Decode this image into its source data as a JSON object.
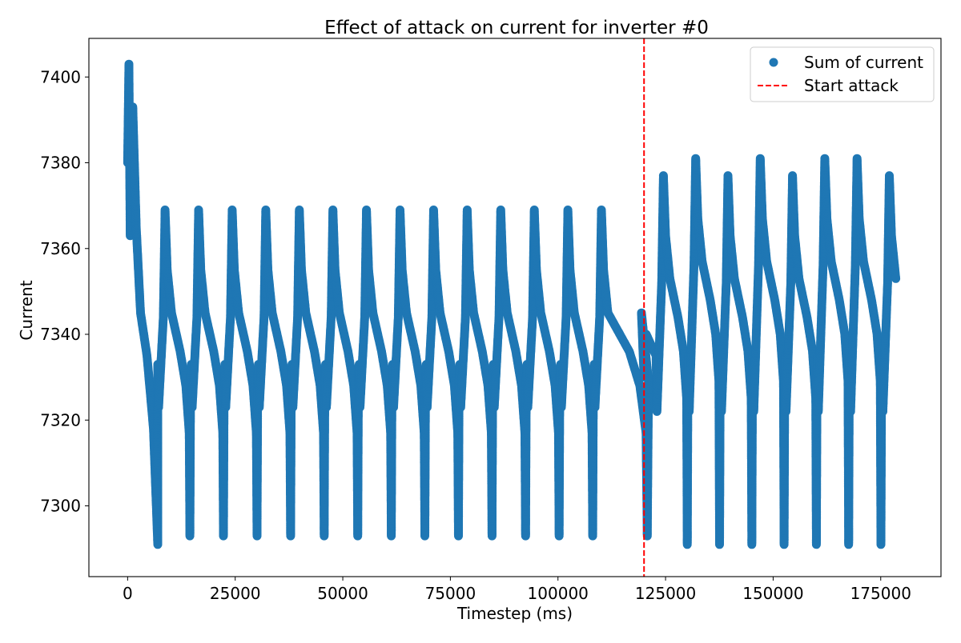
{
  "chart_data": {
    "type": "scatter",
    "title": "Effect of attack on current for inverter #0",
    "xlabel": "Timestep (ms)",
    "ylabel": "Current",
    "xlim": [
      -9000,
      189000
    ],
    "ylim": [
      7283.5,
      7409.0
    ],
    "xticks": [
      0,
      25000,
      50000,
      75000,
      100000,
      125000,
      150000,
      175000
    ],
    "xtick_labels": [
      "0",
      "25000",
      "50000",
      "75000",
      "100000",
      "125000",
      "150000",
      "175000"
    ],
    "yticks": [
      7300,
      7320,
      7340,
      7360,
      7380,
      7400
    ],
    "ytick_labels": [
      "7300",
      "7320",
      "7340",
      "7360",
      "7380",
      "7400"
    ],
    "grid": false,
    "legend_position": "top-right",
    "legend": [
      {
        "label": "Sum of current",
        "kind": "marker",
        "color": "#1f77b4"
      },
      {
        "label": "Start attack",
        "kind": "dashed-line",
        "color": "#ff0000"
      }
    ],
    "attack_start_x": 120000,
    "series": [
      {
        "name": "Sum of current",
        "color": "#1f77b4",
        "x_start": 0,
        "x_end": 180000,
        "startup": {
          "x": [
            0,
            300,
            600,
            1200,
            2000,
            3000,
            4500,
            6000,
            7000
          ],
          "y": [
            7380,
            7403,
            7363,
            7393,
            7365,
            7345,
            7335,
            7318,
            7291
          ]
        },
        "pre_attack_cycles": {
          "start_x": 8700,
          "period": 7800,
          "count": 14,
          "peak": 7369,
          "trough": 7293,
          "knee_high": 7333,
          "knee_low": 7323
        },
        "post_attack_cycles": {
          "peak_x": [
            124500,
            132000,
            139500,
            147000,
            154500,
            162000,
            169500,
            177000
          ],
          "peak_y": [
            7377,
            7381,
            7377,
            7381,
            7377,
            7381,
            7381,
            7377
          ],
          "trough_y": 7291,
          "end_y": 7350
        }
      }
    ]
  }
}
